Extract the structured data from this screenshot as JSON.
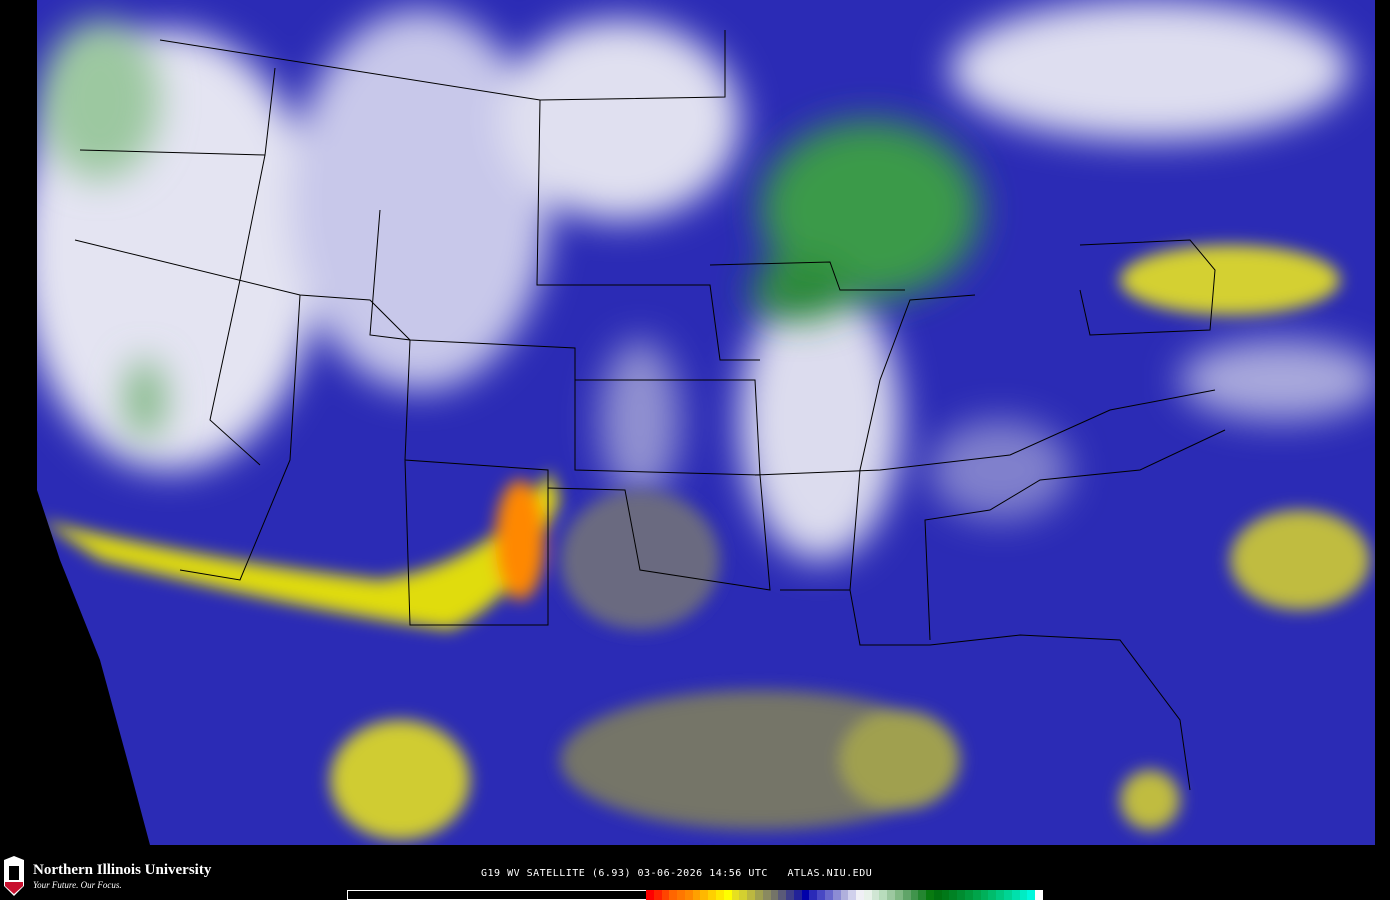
{
  "product": {
    "caption": "G19 WV SATELLITE (6.93) 03-06-2026 14:56 UTC   ATLAS.NIU.EDU"
  },
  "branding": {
    "name": "Northern Illinois University",
    "tagline": "Your Future. Our Focus.",
    "logo_text": "NIU",
    "logo_color": "#c8102e"
  },
  "map": {
    "type": "water vapor satellite imagery",
    "region": "Continental United States",
    "base_color": "#2b2bb5",
    "moist_color": "#e8e8f4",
    "very_moist_color": "#2e8b3a",
    "dry_color": "#e6e000",
    "very_dry_color": "#ff3300"
  },
  "colorbar": {
    "colors": [
      "#ff0000",
      "#ff2200",
      "#ff4400",
      "#ff6600",
      "#ff7700",
      "#ff8800",
      "#ffa000",
      "#ffb800",
      "#ffd000",
      "#ffe800",
      "#ffff00",
      "#e6e020",
      "#d4d030",
      "#bcb840",
      "#a0a050",
      "#8a8a60",
      "#747468",
      "#5a5a78",
      "#3e3e88",
      "#222298",
      "#0000aa",
      "#2a2ab8",
      "#4848c4",
      "#6868cc",
      "#8c8cd4",
      "#b0b0dc",
      "#d0d0ec",
      "#f0f0f6",
      "#e8f2ea",
      "#d0e6d4",
      "#b8dcbc",
      "#9cc8a0",
      "#80b884",
      "#60a468",
      "#40944c",
      "#248630",
      "#087a10",
      "#007010",
      "#007818",
      "#008224",
      "#008c30",
      "#00983c",
      "#00a44a",
      "#00b05a",
      "#00bc6c",
      "#00c880",
      "#00d494",
      "#00e0ac",
      "#00ecc4",
      "#00f8dc",
      "#ffffff"
    ]
  }
}
